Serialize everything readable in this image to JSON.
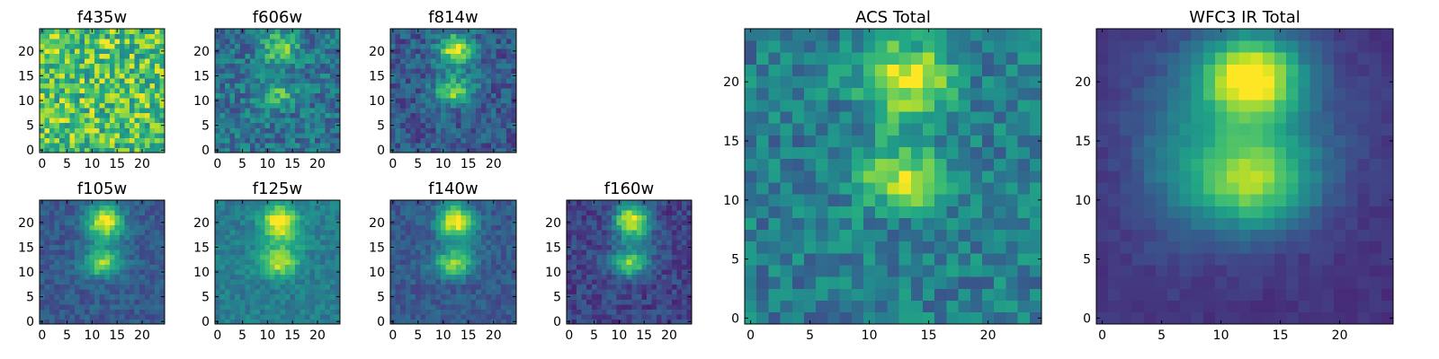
{
  "chart_data": {
    "type": "heatmap",
    "colormap": "viridis",
    "grid_size": 25,
    "panels": [
      {
        "id": "f435w",
        "title": "f435w",
        "pattern": "noise_high",
        "xticks": [
          0,
          5,
          10,
          15,
          20
        ],
        "yticks": [
          0,
          5,
          10,
          15,
          20
        ]
      },
      {
        "id": "f606w",
        "title": "f606w",
        "pattern": "faint_two_blob",
        "xticks": [
          0,
          5,
          10,
          15,
          20
        ],
        "yticks": [
          0,
          5,
          10,
          15,
          20
        ]
      },
      {
        "id": "f814w",
        "title": "f814w",
        "pattern": "two_blob",
        "xticks": [
          0,
          5,
          10,
          15,
          20
        ],
        "yticks": [
          0,
          5,
          10,
          15,
          20
        ]
      },
      {
        "id": "f105w",
        "title": "f105w",
        "pattern": "two_blob_smooth",
        "xticks": [
          0,
          5,
          10,
          15,
          20
        ],
        "yticks": [
          0,
          5,
          10,
          15,
          20
        ]
      },
      {
        "id": "f125w",
        "title": "f125w",
        "pattern": "two_blob_bright",
        "xticks": [
          0,
          5,
          10,
          15,
          20
        ],
        "yticks": [
          0,
          5,
          10,
          15,
          20
        ]
      },
      {
        "id": "f140w",
        "title": "f140w",
        "pattern": "two_blob_smooth",
        "xticks": [
          0,
          5,
          10,
          15,
          20
        ],
        "yticks": [
          0,
          5,
          10,
          15,
          20
        ]
      },
      {
        "id": "f160w",
        "title": "f160w",
        "pattern": "two_blob_dark",
        "xticks": [
          0,
          5,
          10,
          15,
          20
        ],
        "yticks": [
          0,
          5,
          10,
          15,
          20
        ]
      },
      {
        "id": "acs-total",
        "title": "ACS Total",
        "pattern": "acs_total",
        "xticks": [
          0,
          5,
          10,
          15,
          20
        ],
        "yticks": [
          0,
          5,
          10,
          15,
          20
        ]
      },
      {
        "id": "wfc3-ir-total",
        "title": "WFC3 IR Total",
        "pattern": "ir_total",
        "xticks": [
          0,
          5,
          10,
          15,
          20
        ],
        "yticks": [
          0,
          5,
          10,
          15,
          20
        ]
      }
    ],
    "xlim": [
      -0.5,
      24.5
    ],
    "ylim": [
      -0.5,
      24.5
    ],
    "grid": false
  }
}
